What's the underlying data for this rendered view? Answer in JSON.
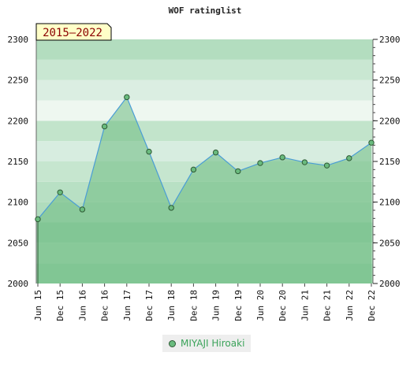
{
  "chart_data": {
    "type": "area",
    "title": "WOF ratinglist",
    "badge": "2015–2022",
    "categories": [
      "Jun 15",
      "Dec 15",
      "Jun 16",
      "Dec 16",
      "Jun 17",
      "Dec 17",
      "Jun 18",
      "Dec 18",
      "Jun 19",
      "Dec 19",
      "Jun 20",
      "Dec 20",
      "Jun 21",
      "Dec 21",
      "Jun 22",
      "Dec 22"
    ],
    "ylim": [
      2000,
      2300
    ],
    "y_ticks": [
      2000,
      2050,
      2100,
      2150,
      2200,
      2250,
      2300
    ],
    "y_minor_step": 10,
    "series": [
      {
        "name": "MIYAJI Hiroaki",
        "values": [
          2079,
          2112,
          2091,
          2193,
          2229,
          2162,
          2093,
          2140,
          2161,
          2138,
          2148,
          2155,
          2149,
          2145,
          2154,
          2173
        ]
      }
    ],
    "grid": true,
    "legend_position": "bottom",
    "colors": {
      "line": "#4a9dd6",
      "fill": "#6dbb82",
      "marker": "#6abb7e",
      "marker_stroke": "#2e5a35",
      "band_dark": "#9dd4ad",
      "band_light": "#eef7f0",
      "badge_bg": "#ffffc8",
      "badge_text": "#8b0000"
    }
  }
}
